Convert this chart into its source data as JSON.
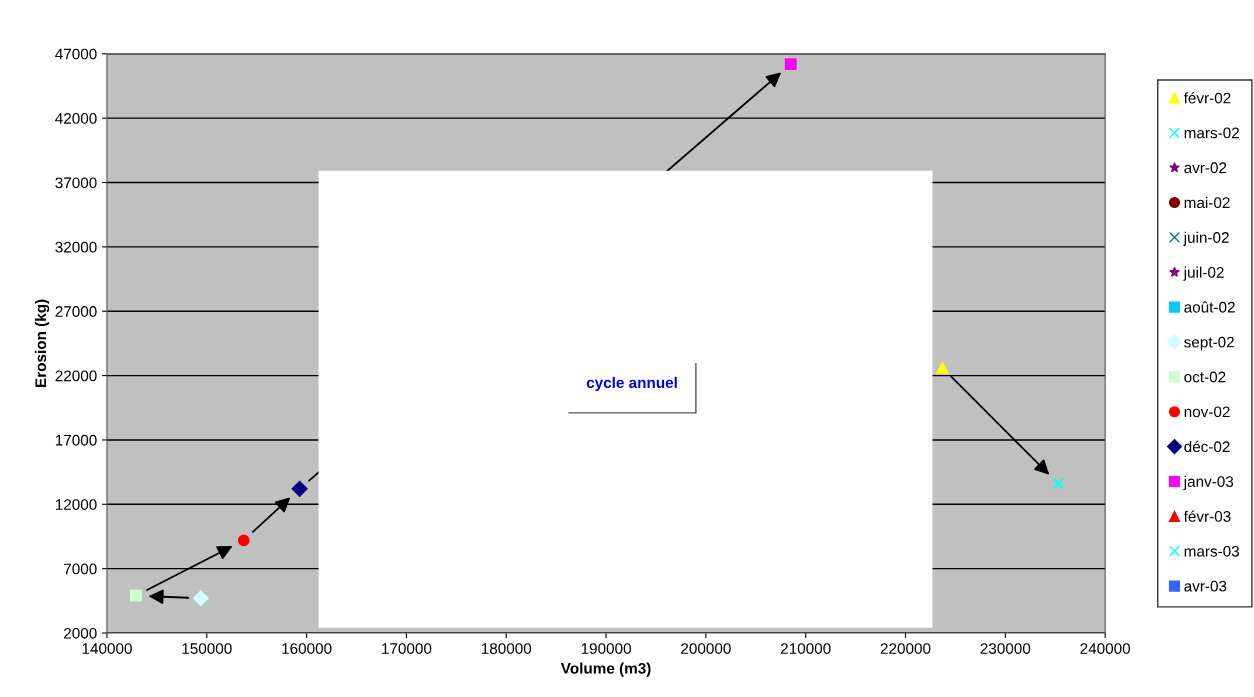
{
  "chart_data": {
    "type": "scatter",
    "xlabel": "Volume (m3)",
    "ylabel": "Erosion (kg)",
    "xlim": [
      140000,
      240000
    ],
    "xticks": [
      140000,
      150000,
      160000,
      170000,
      180000,
      190000,
      200000,
      210000,
      220000,
      230000,
      240000
    ],
    "ylim": [
      2000,
      47000
    ],
    "yticks": [
      2000,
      7000,
      12000,
      17000,
      22000,
      27000,
      32000,
      37000,
      42000,
      47000
    ],
    "grid": "y",
    "legend": "right",
    "annotations": [
      "cycle annuel"
    ],
    "series": [
      {
        "name": "févr-02",
        "color": "#ffff00",
        "marker": "triangle",
        "x": [
          223700
        ],
        "values": [
          22600
        ]
      },
      {
        "name": "mars-02",
        "color": "#00ffff",
        "marker": "cross",
        "x": [
          235300
        ],
        "values": [
          13600
        ]
      },
      {
        "name": "avr-02",
        "color": "#800080",
        "marker": "star",
        "x": [
          null
        ],
        "values": [
          null
        ]
      },
      {
        "name": "mai-02",
        "color": "#800000",
        "marker": "circle",
        "x": [
          null
        ],
        "values": [
          null
        ]
      },
      {
        "name": "juin-02",
        "color": "#008080",
        "marker": "cross",
        "x": [
          null
        ],
        "values": [
          null
        ]
      },
      {
        "name": "juil-02",
        "color": "#800080",
        "marker": "star",
        "x": [
          null
        ],
        "values": [
          null
        ]
      },
      {
        "name": "août-02",
        "color": "#00ccff",
        "marker": "square",
        "x": [
          null
        ],
        "values": [
          null
        ]
      },
      {
        "name": "sept-02",
        "color": "#ccffff",
        "marker": "diamond",
        "x": [
          149400
        ],
        "values": [
          4700
        ]
      },
      {
        "name": "oct-02",
        "color": "#ccffcc",
        "marker": "square",
        "x": [
          142900
        ],
        "values": [
          4900
        ]
      },
      {
        "name": "nov-02",
        "color": "#ff0000",
        "marker": "circle",
        "x": [
          153700
        ],
        "values": [
          9200
        ]
      },
      {
        "name": "déc-02",
        "color": "#000080",
        "marker": "diamond",
        "x": [
          159300
        ],
        "values": [
          13200
        ]
      },
      {
        "name": "janv-03",
        "color": "#ff00ff",
        "marker": "square",
        "x": [
          208500
        ],
        "values": [
          46200
        ]
      },
      {
        "name": "févr-03",
        "color": "#ff0000",
        "marker": "triangle",
        "x": [
          null
        ],
        "values": [
          null
        ]
      },
      {
        "name": "mars-03",
        "color": "#00ffff",
        "marker": "cross",
        "x": [
          null
        ],
        "values": [
          null
        ]
      },
      {
        "name": "avr-03",
        "color": "#3366ff",
        "marker": "square",
        "x": [
          null
        ],
        "values": [
          null
        ]
      }
    ]
  }
}
